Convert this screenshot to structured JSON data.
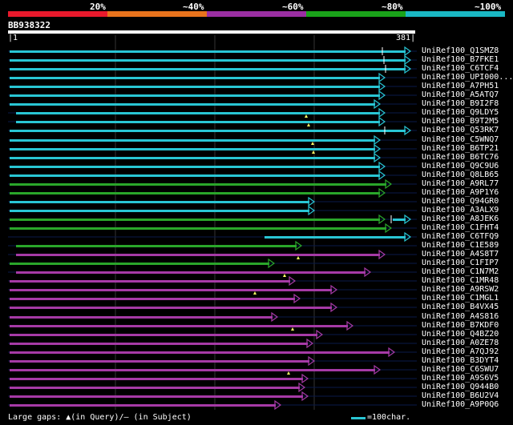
{
  "header": {
    "percent_labels": [
      "20%",
      "~40%",
      "~60%",
      "~80%",
      "~100%"
    ],
    "bar_colors": [
      "#e8192c",
      "#e8731c",
      "#9b2fa3",
      "#1aa31a",
      "#1ab8c4"
    ]
  },
  "query": {
    "name": "BB938322",
    "start": "1",
    "end": "381"
  },
  "legend": {
    "gaps_text": "Large gaps: ▲(in Query)/– (in Subject)",
    "scale_text": "=100char."
  },
  "alignments": [
    {
      "id": "UniRef100_Q1SMZ8",
      "color": "cyan",
      "start": 12,
      "end": 512,
      "gap": 477,
      "mark": null
    },
    {
      "id": "UniRef100_B7FKE1",
      "color": "cyan",
      "start": 12,
      "end": 512,
      "gap": 479,
      "mark": null
    },
    {
      "id": "UniRef100_C6TCF4",
      "color": "cyan",
      "start": 12,
      "end": 512,
      "gap": 481,
      "mark": null
    },
    {
      "id": "UniRef100_UPI000...",
      "color": "cyan",
      "start": 12,
      "end": 480,
      "gap": null,
      "mark": null
    },
    {
      "id": "UniRef100_A7PH51",
      "color": "cyan",
      "start": 12,
      "end": 480,
      "gap": null,
      "mark": null
    },
    {
      "id": "UniRef100_A5ATQ7",
      "color": "cyan",
      "start": 12,
      "end": 480,
      "gap": null,
      "mark": null
    },
    {
      "id": "UniRef100_B9I2F8",
      "color": "cyan",
      "start": 12,
      "end": 474,
      "gap": null,
      "mark": null
    },
    {
      "id": "UniRef100_Q9LDY5",
      "color": "cyan",
      "start": 20,
      "end": 480,
      "gap": null,
      "mark": 382
    },
    {
      "id": "UniRef100_B9T2M5",
      "color": "cyan",
      "start": 20,
      "end": 480,
      "gap": null,
      "mark": 385
    },
    {
      "id": "UniRef100_Q53RK7",
      "color": "cyan",
      "start": 12,
      "end": 512,
      "gap": 480,
      "mark": null
    },
    {
      "id": "UniRef100_C5WNQ7",
      "color": "cyan",
      "start": 12,
      "end": 474,
      "gap": null,
      "mark": 390
    },
    {
      "id": "UniRef100_B6TP21",
      "color": "cyan",
      "start": 12,
      "end": 474,
      "gap": null,
      "mark": 391
    },
    {
      "id": "UniRef100_B6TC76",
      "color": "cyan",
      "start": 12,
      "end": 474,
      "gap": null,
      "mark": null
    },
    {
      "id": "UniRef100_Q9C9U6",
      "color": "cyan",
      "start": 12,
      "end": 480,
      "gap": null,
      "mark": null
    },
    {
      "id": "UniRef100_Q8LB65",
      "color": "cyan",
      "start": 12,
      "end": 480,
      "gap": null,
      "mark": null
    },
    {
      "id": "UniRef100_A9RL77",
      "color": "green",
      "start": 12,
      "end": 488,
      "gap": null,
      "mark": null
    },
    {
      "id": "UniRef100_A9P1Y6",
      "color": "green",
      "start": 12,
      "end": 480,
      "gap": null,
      "mark": null
    },
    {
      "id": "UniRef100_Q94GR0",
      "color": "cyan",
      "start": 12,
      "end": 392,
      "gap": null,
      "mark": null
    },
    {
      "id": "UniRef100_A3ALX9",
      "color": "cyan",
      "start": 12,
      "end": 392,
      "gap": null,
      "mark": null
    },
    {
      "id": "UniRef100_A8JEK6",
      "color": "green",
      "start": 12,
      "end": 480,
      "gap": 488,
      "gapColor": "cyan",
      "gapEnd": 512,
      "mark": null
    },
    {
      "id": "UniRef100_C1FHT4",
      "color": "green",
      "start": 12,
      "end": 488,
      "gap": null,
      "mark": null
    },
    {
      "id": "UniRef100_C6TFQ9",
      "color": "cyan",
      "start": 330,
      "end": 512,
      "gap": null,
      "mark": null
    },
    {
      "id": "UniRef100_C1E589",
      "color": "green",
      "start": 20,
      "end": 376,
      "gap": null,
      "mark": null
    },
    {
      "id": "UniRef100_A4S8T7",
      "color": "magenta",
      "start": 20,
      "end": 480,
      "gap": null,
      "mark": 372
    },
    {
      "id": "UniRef100_C1FIP7",
      "color": "green",
      "start": 12,
      "end": 342,
      "gap": null,
      "mark": null
    },
    {
      "id": "UniRef100_C1N7M2",
      "color": "magenta",
      "start": 20,
      "end": 462,
      "gap": null,
      "mark": 355
    },
    {
      "id": "UniRef100_C1MR48",
      "color": "magenta",
      "start": 12,
      "end": 368,
      "gap": null,
      "mark": null
    },
    {
      "id": "UniRef100_A9RSW2",
      "color": "magenta",
      "start": 12,
      "end": 420,
      "gap": null,
      "mark": 318
    },
    {
      "id": "UniRef100_C1MGL1",
      "color": "magenta",
      "start": 12,
      "end": 374,
      "gap": null,
      "mark": null
    },
    {
      "id": "UniRef100_B4VX45",
      "color": "magenta",
      "start": 12,
      "end": 420,
      "gap": null,
      "mark": null
    },
    {
      "id": "UniRef100_A4S816",
      "color": "magenta",
      "start": 12,
      "end": 346,
      "gap": null,
      "mark": null
    },
    {
      "id": "UniRef100_B7KDF0",
      "color": "magenta",
      "start": 12,
      "end": 440,
      "gap": null,
      "mark": 365
    },
    {
      "id": "UniRef100_Q4BZ20",
      "color": "magenta",
      "start": 12,
      "end": 402,
      "gap": null,
      "mark": null
    },
    {
      "id": "UniRef100_A0ZE78",
      "color": "magenta",
      "start": 12,
      "end": 390,
      "gap": null,
      "mark": null
    },
    {
      "id": "UniRef100_A7QJ92",
      "color": "magenta",
      "start": 12,
      "end": 492,
      "gap": null,
      "mark": null
    },
    {
      "id": "UniRef100_B3DYT4",
      "color": "magenta",
      "start": 12,
      "end": 392,
      "gap": null,
      "mark": null
    },
    {
      "id": "UniRef100_C6SWU7",
      "color": "magenta",
      "start": 12,
      "end": 474,
      "gap": null,
      "mark": 360
    },
    {
      "id": "UniRef100_A9S6V5",
      "color": "magenta",
      "start": 12,
      "end": 384,
      "gap": null,
      "mark": null
    },
    {
      "id": "UniRef100_Q944B0",
      "color": "magenta",
      "start": 12,
      "end": 380,
      "gap": null,
      "mark": null
    },
    {
      "id": "UniRef100_B6U2V4",
      "color": "magenta",
      "start": 12,
      "end": 384,
      "gap": null,
      "mark": null
    },
    {
      "id": "UniRef100_A9P0Q6",
      "color": "magenta",
      "start": 12,
      "end": 350,
      "gap": null,
      "mark": null
    }
  ]
}
